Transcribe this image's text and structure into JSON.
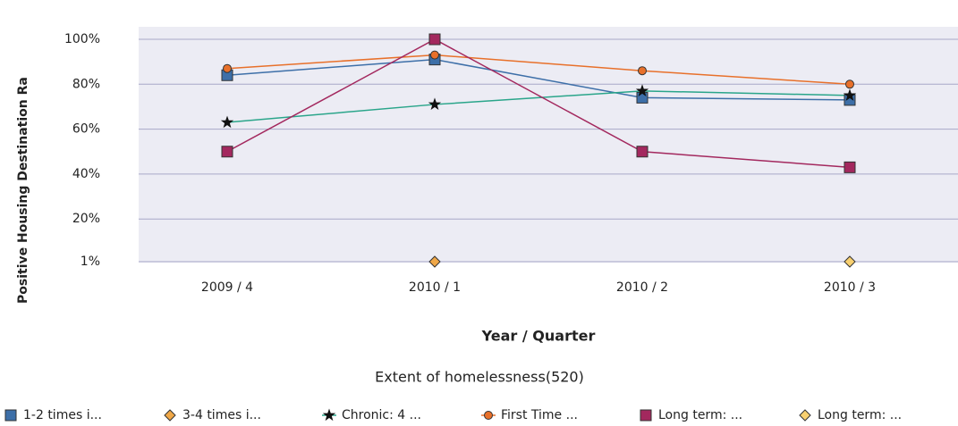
{
  "chart_data": {
    "type": "line",
    "y_axis_label": "Positive Housing Destination Ra",
    "x_axis_label": "Year / Quarter",
    "title": "Extent of homelessness(520)",
    "categories": [
      "2009 / 4",
      "2010 / 1",
      "2010 / 2",
      "2010 / 3"
    ],
    "ylim": [
      1,
      100
    ],
    "yticks": [
      {
        "value": 1,
        "label": "1%"
      },
      {
        "value": 20,
        "label": "20%"
      },
      {
        "value": 40,
        "label": "40%"
      },
      {
        "value": 60,
        "label": "60%"
      },
      {
        "value": 80,
        "label": "80%"
      },
      {
        "value": 100,
        "label": "100%"
      }
    ],
    "grid": true,
    "legend": "bottom",
    "series": [
      {
        "name": "1-2 times i...",
        "color": "#3d6fa8",
        "marker": "square",
        "values": [
          84,
          91,
          74,
          73
        ]
      },
      {
        "name": "3-4 times i...",
        "color": "#f0a848",
        "marker": "diamond",
        "values": [
          null,
          1,
          null,
          null
        ]
      },
      {
        "name": "Chronic: 4 ...",
        "color": "#2aa58a",
        "marker": "star",
        "values": [
          63,
          71,
          77,
          75
        ]
      },
      {
        "name": "First Time ...",
        "color": "#e8702a",
        "marker": "circle",
        "values": [
          87,
          93,
          86,
          80
        ]
      },
      {
        "name": "Long term: ...",
        "color": "#a3285e",
        "marker": "square",
        "values": [
          50,
          100,
          50,
          43
        ]
      },
      {
        "name": "Long term: ...",
        "color": "#f8d070",
        "marker": "diamond",
        "values": [
          null,
          null,
          null,
          1
        ]
      }
    ]
  }
}
